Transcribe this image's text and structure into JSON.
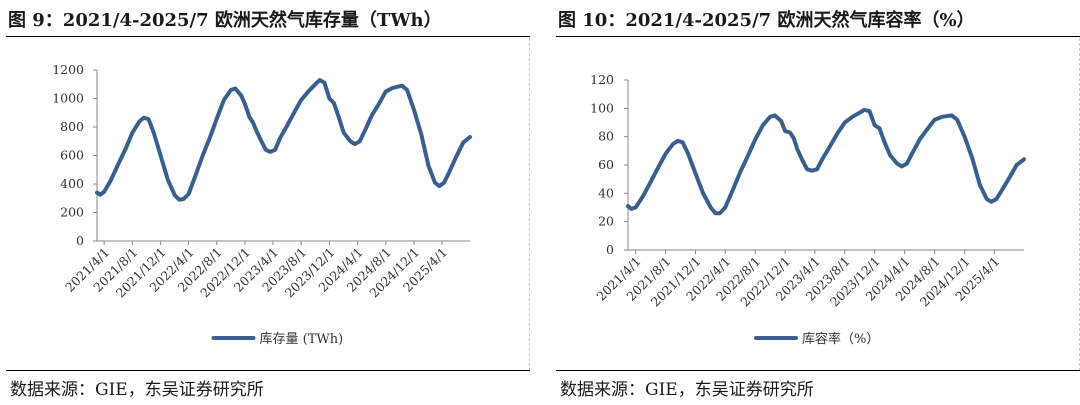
{
  "source_text": "数据来源：GIE，东吴证券研究所",
  "colors": {
    "series": "#3a5f8f",
    "axis": "#888888",
    "text": "#333333"
  },
  "chart_data": [
    {
      "type": "line",
      "title": "图 9：2021/4-2025/7 欧洲天然气库存量（TWh）",
      "x_tick_labels": [
        "2021/4/1",
        "2021/8/1",
        "2021/12/1",
        "2022/4/1",
        "2022/8/1",
        "2022/12/1",
        "2023/4/1",
        "2023/8/1",
        "2023/12/1",
        "2024/4/1",
        "2024/8/1",
        "2024/12/1",
        "2025/4/1"
      ],
      "y_tick_labels": [
        "0",
        "200",
        "400",
        "600",
        "800",
        "1000",
        "1200"
      ],
      "ylim": [
        0,
        1200
      ],
      "x_start": "2021-03-01",
      "x_end": "2025-07-31",
      "grid": false,
      "legend_position": "bottom",
      "series": [
        {
          "name": "库存量 (TWh)",
          "points": [
            [
              "2021-03-01",
              340
            ],
            [
              "2021-03-15",
              325
            ],
            [
              "2021-04-01",
              345
            ],
            [
              "2021-05-01",
              430
            ],
            [
              "2021-06-01",
              540
            ],
            [
              "2021-07-01",
              640
            ],
            [
              "2021-08-01",
              760
            ],
            [
              "2021-09-01",
              840
            ],
            [
              "2021-09-20",
              865
            ],
            [
              "2021-10-10",
              855
            ],
            [
              "2021-11-01",
              760
            ],
            [
              "2021-12-01",
              600
            ],
            [
              "2022-01-01",
              430
            ],
            [
              "2022-02-01",
              320
            ],
            [
              "2022-02-20",
              290
            ],
            [
              "2022-03-10",
              295
            ],
            [
              "2022-04-01",
              330
            ],
            [
              "2022-05-01",
              460
            ],
            [
              "2022-06-01",
              600
            ],
            [
              "2022-07-01",
              720
            ],
            [
              "2022-08-01",
              860
            ],
            [
              "2022-09-01",
              990
            ],
            [
              "2022-10-01",
              1060
            ],
            [
              "2022-10-20",
              1070
            ],
            [
              "2022-11-15",
              1020
            ],
            [
              "2022-12-01",
              960
            ],
            [
              "2022-12-20",
              870
            ],
            [
              "2023-01-05",
              830
            ],
            [
              "2023-01-20",
              770
            ],
            [
              "2023-02-10",
              700
            ],
            [
              "2023-03-01",
              640
            ],
            [
              "2023-03-20",
              625
            ],
            [
              "2023-04-10",
              640
            ],
            [
              "2023-05-01",
              720
            ],
            [
              "2023-06-01",
              810
            ],
            [
              "2023-07-01",
              900
            ],
            [
              "2023-08-01",
              990
            ],
            [
              "2023-09-01",
              1050
            ],
            [
              "2023-10-01",
              1100
            ],
            [
              "2023-10-20",
              1130
            ],
            [
              "2023-11-10",
              1110
            ],
            [
              "2023-12-01",
              1000
            ],
            [
              "2023-12-20",
              970
            ],
            [
              "2024-01-10",
              870
            ],
            [
              "2024-02-01",
              760
            ],
            [
              "2024-03-01",
              700
            ],
            [
              "2024-03-20",
              680
            ],
            [
              "2024-04-10",
              700
            ],
            [
              "2024-05-01",
              770
            ],
            [
              "2024-06-01",
              880
            ],
            [
              "2024-07-01",
              960
            ],
            [
              "2024-08-01",
              1050
            ],
            [
              "2024-09-01",
              1075
            ],
            [
              "2024-10-10",
              1090
            ],
            [
              "2024-11-01",
              1060
            ],
            [
              "2024-12-01",
              920
            ],
            [
              "2025-01-01",
              750
            ],
            [
              "2025-02-01",
              530
            ],
            [
              "2025-03-01",
              410
            ],
            [
              "2025-03-20",
              385
            ],
            [
              "2025-04-10",
              410
            ],
            [
              "2025-05-01",
              480
            ],
            [
              "2025-06-01",
              590
            ],
            [
              "2025-07-01",
              690
            ],
            [
              "2025-07-31",
              730
            ]
          ]
        }
      ]
    },
    {
      "type": "line",
      "title": "图 10：2021/4-2025/7 欧洲天然气库容率（%）",
      "x_tick_labels": [
        "2021/4/1",
        "2021/8/1",
        "2021/12/1",
        "2022/4/1",
        "2022/8/1",
        "2022/12/1",
        "2023/4/1",
        "2023/8/1",
        "2023/12/1",
        "2024/4/1",
        "2024/8/1",
        "2024/12/1",
        "2025/4/1"
      ],
      "y_tick_labels": [
        "0",
        "20",
        "40",
        "60",
        "80",
        "100",
        "120"
      ],
      "ylim": [
        0,
        120
      ],
      "x_start": "2021-03-01",
      "x_end": "2025-07-31",
      "grid": false,
      "legend_position": "bottom",
      "series": [
        {
          "name": "库容率（%）",
          "points": [
            [
              "2021-03-01",
              31
            ],
            [
              "2021-03-15",
              29
            ],
            [
              "2021-04-01",
              30
            ],
            [
              "2021-05-01",
              38
            ],
            [
              "2021-06-01",
              48
            ],
            [
              "2021-07-01",
              58
            ],
            [
              "2021-08-01",
              68
            ],
            [
              "2021-09-01",
              75
            ],
            [
              "2021-09-20",
              77
            ],
            [
              "2021-10-10",
              76
            ],
            [
              "2021-11-01",
              68
            ],
            [
              "2021-12-01",
              54
            ],
            [
              "2022-01-01",
              40
            ],
            [
              "2022-02-01",
              30
            ],
            [
              "2022-02-20",
              26
            ],
            [
              "2022-03-10",
              26
            ],
            [
              "2022-04-01",
              30
            ],
            [
              "2022-05-01",
              42
            ],
            [
              "2022-06-01",
              55
            ],
            [
              "2022-07-01",
              66
            ],
            [
              "2022-08-01",
              78
            ],
            [
              "2022-09-01",
              88
            ],
            [
              "2022-10-01",
              94
            ],
            [
              "2022-10-20",
              95
            ],
            [
              "2022-11-15",
              91
            ],
            [
              "2022-12-01",
              84
            ],
            [
              "2022-12-20",
              83
            ],
            [
              "2023-01-05",
              79
            ],
            [
              "2023-01-20",
              71
            ],
            [
              "2023-02-10",
              63
            ],
            [
              "2023-03-01",
              57
            ],
            [
              "2023-03-20",
              56
            ],
            [
              "2023-04-10",
              57
            ],
            [
              "2023-05-01",
              64
            ],
            [
              "2023-06-01",
              73
            ],
            [
              "2023-07-01",
              82
            ],
            [
              "2023-08-01",
              90
            ],
            [
              "2023-09-01",
              94
            ],
            [
              "2023-10-01",
              97
            ],
            [
              "2023-10-20",
              99
            ],
            [
              "2023-11-10",
              98
            ],
            [
              "2023-12-01",
              88
            ],
            [
              "2023-12-20",
              86
            ],
            [
              "2024-01-10",
              76
            ],
            [
              "2024-02-01",
              67
            ],
            [
              "2024-03-01",
              61
            ],
            [
              "2024-03-20",
              59
            ],
            [
              "2024-04-10",
              61
            ],
            [
              "2024-05-01",
              68
            ],
            [
              "2024-06-01",
              78
            ],
            [
              "2024-07-01",
              85
            ],
            [
              "2024-08-01",
              92
            ],
            [
              "2024-09-01",
              94
            ],
            [
              "2024-10-10",
              95
            ],
            [
              "2024-11-01",
              92
            ],
            [
              "2024-12-01",
              80
            ],
            [
              "2025-01-01",
              65
            ],
            [
              "2025-02-01",
              46
            ],
            [
              "2025-03-01",
              36
            ],
            [
              "2025-03-20",
              34
            ],
            [
              "2025-04-10",
              36
            ],
            [
              "2025-05-01",
              42
            ],
            [
              "2025-06-01",
              51
            ],
            [
              "2025-07-01",
              60
            ],
            [
              "2025-07-31",
              64
            ]
          ]
        }
      ]
    }
  ]
}
